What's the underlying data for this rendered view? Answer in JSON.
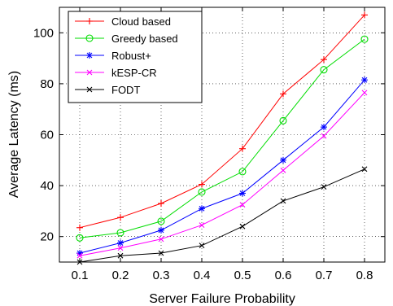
{
  "chart_data": {
    "type": "line",
    "title": "",
    "xlabel": "Server Failure Probability",
    "ylabel": "Average Latency (ms)",
    "x": [
      0.1,
      0.2,
      0.3,
      0.4,
      0.5,
      0.6,
      0.7,
      0.8
    ],
    "x_tick_labels": [
      "0.1",
      "0.2",
      "0.3",
      "0.4",
      "0.5",
      "0.6",
      "0.7",
      "0.8"
    ],
    "xlim": [
      0.05,
      0.85
    ],
    "ylim": [
      10,
      110
    ],
    "y_ticks": [
      20,
      40,
      60,
      80,
      100
    ],
    "y_tick_labels": [
      "20",
      "40",
      "60",
      "80",
      "100"
    ],
    "grid": true,
    "grid_style": "dotted",
    "legend_position": "top-left",
    "series": [
      {
        "name": "Cloud based",
        "color": "#ff0000",
        "marker": "plus",
        "values": [
          23.5,
          27.5,
          33.0,
          40.5,
          54.5,
          76.0,
          89.5,
          107.0
        ]
      },
      {
        "name": "Greedy based",
        "color": "#00dd00",
        "marker": "circle",
        "values": [
          19.5,
          21.5,
          26.0,
          37.5,
          45.5,
          65.5,
          85.5,
          97.5
        ]
      },
      {
        "name": "Robust+",
        "color": "#0000ff",
        "marker": "star",
        "values": [
          13.5,
          17.5,
          22.5,
          31.0,
          37.0,
          50.0,
          63.0,
          81.5
        ]
      },
      {
        "name": "kESP-CR",
        "color": "#ff00ff",
        "marker": "x",
        "values": [
          12.5,
          15.5,
          19.0,
          24.5,
          32.5,
          46.0,
          59.5,
          76.5
        ]
      },
      {
        "name": "FODT",
        "color": "#000000",
        "marker": "x",
        "values": [
          10.0,
          12.5,
          13.5,
          16.5,
          24.0,
          34.0,
          39.5,
          46.5
        ]
      }
    ]
  }
}
